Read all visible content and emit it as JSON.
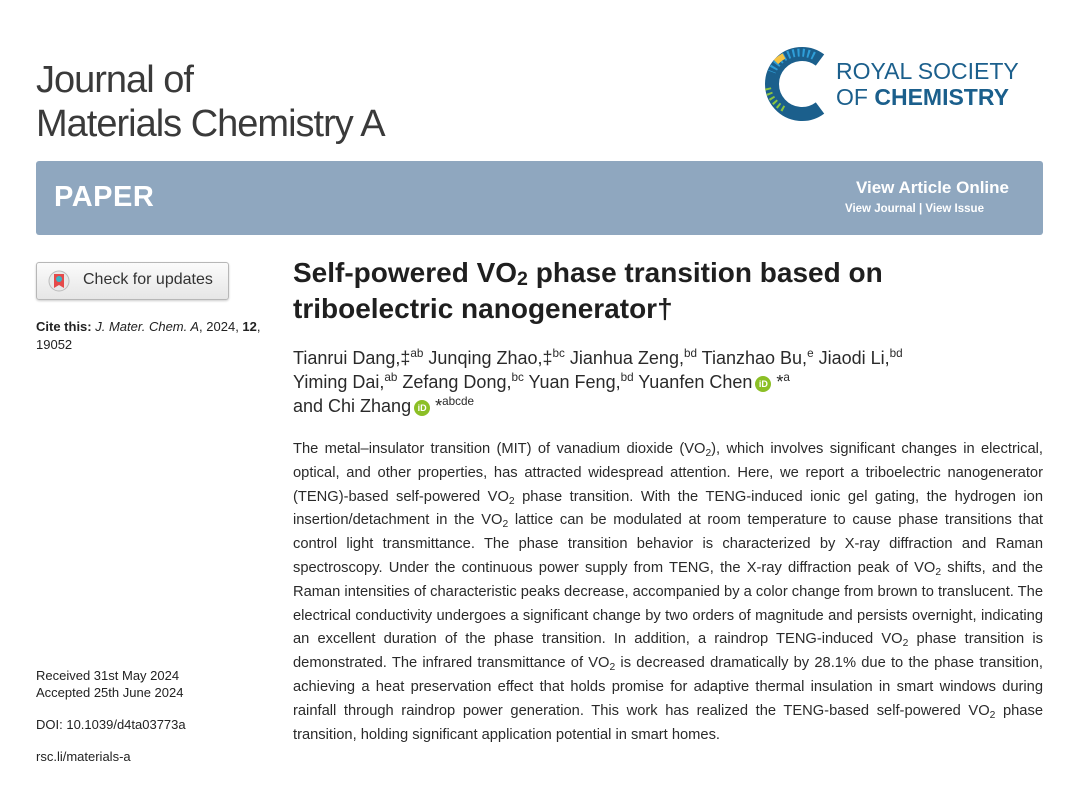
{
  "journal": {
    "line1": "Journal of",
    "line2": "Materials Chemistry A"
  },
  "publisher": {
    "line1": "ROYAL SOCIETY",
    "line2_prefix": "OF ",
    "line2_strong": "CHEMISTRY",
    "logo_colors": [
      "#1b5f8c",
      "#2f9ed8",
      "#8cc63f",
      "#f6c342"
    ]
  },
  "banner": {
    "label": "PAPER",
    "view_online": "View Article Online",
    "view_journal": "View Journal",
    "separator": "|",
    "view_issue": "View Issue",
    "color": "#8fa7bf"
  },
  "sidebar": {
    "check_updates": "Check for updates",
    "cite_label": "Cite this:",
    "cite_journal": "J. Mater. Chem. A",
    "cite_year": ", 2024, ",
    "cite_volume": "12",
    "cite_page": ", 19052",
    "received": "Received 31st May 2024",
    "accepted": "Accepted 25th June 2024",
    "doi": "DOI: 10.1039/d4ta03773a",
    "link": "rsc.li/materials-a"
  },
  "article": {
    "title_a": "Self-powered VO",
    "title_sub": "2",
    "title_b": " phase transition based on triboelectric nanogenerator†"
  }
}
